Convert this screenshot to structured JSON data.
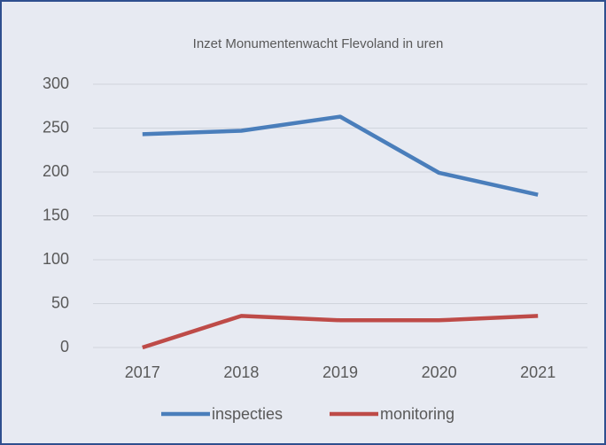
{
  "chart_data": {
    "type": "line",
    "title": "Inzet Monumentenwacht Flevoland in uren",
    "categories": [
      "2017",
      "2018",
      "2019",
      "2020",
      "2021"
    ],
    "series": [
      {
        "name": "inspecties",
        "color": "#4a7ebb",
        "values": [
          243,
          247,
          263,
          199,
          174
        ]
      },
      {
        "name": "monitoring",
        "color": "#be4b48",
        "values": [
          0,
          36,
          31,
          31,
          36
        ]
      }
    ],
    "ylim": [
      0,
      300
    ],
    "yticks": [
      0,
      50,
      100,
      150,
      200,
      250,
      300
    ],
    "grid": true,
    "legend": "bottom"
  }
}
